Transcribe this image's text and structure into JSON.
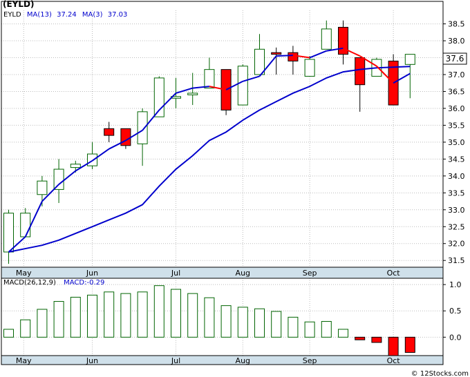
{
  "symbol_label": "(EYLD)",
  "credit": "© 12Stocks.com",
  "colors": {
    "up_fill": "#ffffff",
    "up_stroke": "#006400",
    "down_fill": "#ff0000",
    "down_stroke": "#000000",
    "ma_color": "#0000cc",
    "ma3_down_color": "#ff0000",
    "grid": "#bbbbbb",
    "frame": "#000000",
    "bottom_band": "#cfe0ea"
  },
  "chart_data": [
    {
      "type": "candlestick",
      "legend": [
        {
          "label": "EYLD",
          "color": "#000000"
        },
        {
          "label": "MA(13)",
          "value": "37.24",
          "color": "#0000cc"
        },
        {
          "label": "MA(3)",
          "value": "37.03",
          "color": "#0000cc"
        }
      ],
      "last_price_label": "37.6",
      "ylim": [
        31.3,
        38.9
      ],
      "y_ticks": [
        31.5,
        32.0,
        32.5,
        33.0,
        33.5,
        34.0,
        34.5,
        35.0,
        35.5,
        36.0,
        36.5,
        37.0,
        37.5,
        38.0,
        38.5
      ],
      "y_tick_labels": [
        "31.5",
        "32.0",
        "32.5",
        "33.0",
        "33.5",
        "34.0",
        "34.5",
        "35.0",
        "35.5",
        "36.0",
        "36.5",
        "37.0",
        "37.5",
        "38.0",
        "38.5"
      ],
      "x_month_labels": [
        {
          "label": "May",
          "week": 0.9
        },
        {
          "label": "Jun",
          "week": 5.0
        },
        {
          "label": "Jul",
          "week": 10.0
        },
        {
          "label": "Aug",
          "week": 14.0
        },
        {
          "label": "Sep",
          "week": 18.0
        },
        {
          "label": "Oct",
          "week": 23.0
        }
      ],
      "candles": [
        {
          "o": 31.75,
          "h": 33.0,
          "l": 31.4,
          "c": 32.9
        },
        {
          "o": 32.2,
          "h": 33.05,
          "l": 32.2,
          "c": 32.9
        },
        {
          "o": 33.45,
          "h": 34.0,
          "l": 33.1,
          "c": 33.85
        },
        {
          "o": 33.6,
          "h": 34.5,
          "l": 33.2,
          "c": 34.2
        },
        {
          "o": 34.25,
          "h": 34.45,
          "l": 34.1,
          "c": 34.35
        },
        {
          "o": 34.3,
          "h": 35.0,
          "l": 34.2,
          "c": 34.65
        },
        {
          "o": 35.4,
          "h": 35.6,
          "l": 35.0,
          "c": 35.2
        },
        {
          "o": 35.4,
          "h": 35.4,
          "l": 34.8,
          "c": 34.9
        },
        {
          "o": 34.95,
          "h": 36.0,
          "l": 34.3,
          "c": 35.9
        },
        {
          "o": 35.75,
          "h": 36.95,
          "l": 35.75,
          "c": 36.9
        },
        {
          "o": 36.3,
          "h": 36.9,
          "l": 36.0,
          "c": 36.35
        },
        {
          "o": 36.4,
          "h": 37.05,
          "l": 36.1,
          "c": 36.45
        },
        {
          "o": 36.6,
          "h": 37.5,
          "l": 36.6,
          "c": 37.15
        },
        {
          "o": 37.15,
          "h": 37.15,
          "l": 35.8,
          "c": 35.95
        },
        {
          "o": 36.1,
          "h": 37.3,
          "l": 36.1,
          "c": 37.25
        },
        {
          "o": 37.0,
          "h": 38.2,
          "l": 37.0,
          "c": 37.75
        },
        {
          "o": 37.65,
          "h": 37.8,
          "l": 37.0,
          "c": 37.6
        },
        {
          "o": 37.65,
          "h": 37.85,
          "l": 37.0,
          "c": 37.4
        },
        {
          "o": 36.95,
          "h": 37.55,
          "l": 36.95,
          "c": 37.45
        },
        {
          "o": 37.75,
          "h": 38.6,
          "l": 37.75,
          "c": 38.35
        },
        {
          "o": 38.4,
          "h": 38.6,
          "l": 37.3,
          "c": 37.6
        },
        {
          "o": 37.5,
          "h": 37.5,
          "l": 35.9,
          "c": 36.7
        },
        {
          "o": 36.95,
          "h": 37.5,
          "l": 36.95,
          "c": 37.45
        },
        {
          "o": 37.4,
          "h": 37.6,
          "l": 36.1,
          "c": 36.1
        },
        {
          "o": 37.3,
          "h": 37.6,
          "l": 36.3,
          "c": 37.6
        }
      ],
      "ma13": [
        31.75,
        31.85,
        31.95,
        32.1,
        32.3,
        32.5,
        32.7,
        32.9,
        33.15,
        33.7,
        34.2,
        34.6,
        35.05,
        35.3,
        35.65,
        35.95,
        36.2,
        36.45,
        36.65,
        36.9,
        37.08,
        37.15,
        37.2,
        37.22,
        37.24
      ],
      "ma3": [
        31.75,
        32.2,
        33.25,
        33.75,
        34.15,
        34.45,
        34.8,
        35.05,
        35.35,
        35.95,
        36.45,
        36.6,
        36.65,
        36.55,
        36.8,
        36.95,
        37.55,
        37.57,
        37.5,
        37.7,
        37.78,
        37.55,
        37.25,
        36.75,
        37.03
      ],
      "ma3_segment_colors": [
        "blue",
        "blue",
        "blue",
        "blue",
        "blue",
        "blue",
        "blue",
        "blue",
        "blue",
        "blue",
        "blue",
        "blue",
        "red",
        "blue",
        "blue",
        "blue",
        "blue",
        "red",
        "blue",
        "blue",
        "red",
        "red",
        "red",
        "blue"
      ]
    },
    {
      "type": "bar",
      "legend": [
        {
          "label": "MACD(26,12,9)",
          "color": "#000000"
        },
        {
          "label": "MACD:-0.29",
          "color": "#0000cc"
        }
      ],
      "ylim": [
        -0.35,
        1.12
      ],
      "y_ticks": [
        0.0,
        0.5,
        1.0
      ],
      "y_tick_labels": [
        "0.0",
        "0.5",
        "1.0"
      ],
      "values": [
        0.15,
        0.33,
        0.53,
        0.68,
        0.76,
        0.8,
        0.86,
        0.83,
        0.86,
        0.98,
        0.91,
        0.83,
        0.75,
        0.6,
        0.57,
        0.54,
        0.49,
        0.38,
        0.29,
        0.3,
        0.15,
        -0.05,
        -0.1,
        -0.35,
        -0.29
      ],
      "x_month_labels": [
        {
          "label": "May",
          "week": 0.9
        },
        {
          "label": "Jun",
          "week": 5.0
        },
        {
          "label": "Jul",
          "week": 10.0
        },
        {
          "label": "Aug",
          "week": 14.0
        },
        {
          "label": "Sep",
          "week": 18.0
        },
        {
          "label": "Oct",
          "week": 23.0
        }
      ]
    }
  ]
}
